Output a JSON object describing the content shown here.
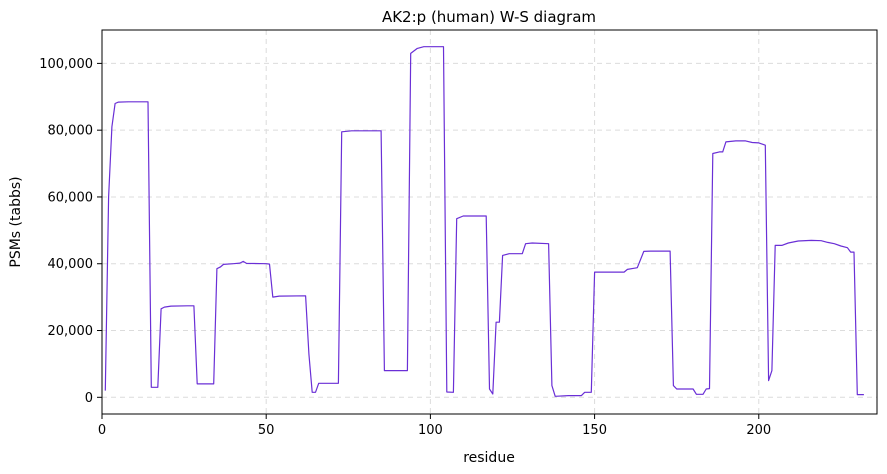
{
  "chart_data": {
    "type": "line",
    "title": "AK2:p (human) W-S diagram",
    "xlabel": "residue",
    "ylabel": "PSMs (tabbs)",
    "xlim": [
      0,
      236
    ],
    "ylim": [
      -5000,
      110000
    ],
    "x_ticks": [
      0,
      50,
      100,
      150,
      200
    ],
    "x_tick_labels": [
      "0",
      "50",
      "100",
      "150",
      "200"
    ],
    "y_ticks": [
      0,
      20000,
      40000,
      60000,
      80000,
      100000
    ],
    "y_tick_labels": [
      "0",
      "20,000",
      "40,000",
      "60,000",
      "80,000",
      "100,000"
    ],
    "grid": true,
    "series_color": "#6a2fd6",
    "series": [
      {
        "points": [
          [
            1,
            2000
          ],
          [
            2,
            60000
          ],
          [
            3,
            81000
          ],
          [
            4,
            88000
          ],
          [
            5,
            88400
          ],
          [
            8,
            88500
          ],
          [
            14,
            88500
          ],
          [
            15,
            3000
          ],
          [
            17,
            3000
          ],
          [
            18,
            26500
          ],
          [
            19,
            27000
          ],
          [
            21,
            27300
          ],
          [
            26,
            27400
          ],
          [
            28,
            27400
          ],
          [
            29,
            4000
          ],
          [
            34,
            4000
          ],
          [
            35,
            38500
          ],
          [
            36,
            39000
          ],
          [
            37,
            39800
          ],
          [
            40,
            40000
          ],
          [
            42,
            40200
          ],
          [
            43,
            40700
          ],
          [
            44,
            40100
          ],
          [
            50,
            40000
          ],
          [
            51,
            39900
          ],
          [
            52,
            30000
          ],
          [
            54,
            30300
          ],
          [
            62,
            30400
          ],
          [
            63,
            13000
          ],
          [
            64,
            1500
          ],
          [
            65,
            1500
          ],
          [
            66,
            4200
          ],
          [
            72,
            4200
          ],
          [
            73,
            79500
          ],
          [
            76,
            79800
          ],
          [
            85,
            79800
          ],
          [
            86,
            8000
          ],
          [
            93,
            8000
          ],
          [
            94,
            103000
          ],
          [
            96,
            104500
          ],
          [
            98,
            105000
          ],
          [
            104,
            105000
          ],
          [
            105,
            1600
          ],
          [
            107,
            1500
          ],
          [
            108,
            53500
          ],
          [
            110,
            54300
          ],
          [
            117,
            54300
          ],
          [
            118,
            2500
          ],
          [
            119,
            1000
          ],
          [
            120,
            22500
          ],
          [
            121,
            22500
          ],
          [
            122,
            42500
          ],
          [
            124,
            43000
          ],
          [
            128,
            43000
          ],
          [
            129,
            46000
          ],
          [
            131,
            46200
          ],
          [
            136,
            46000
          ],
          [
            137,
            3500
          ],
          [
            138,
            300
          ],
          [
            142,
            500
          ],
          [
            146,
            500
          ],
          [
            147,
            1500
          ],
          [
            149,
            1500
          ],
          [
            150,
            37500
          ],
          [
            152,
            37500
          ],
          [
            159,
            37500
          ],
          [
            160,
            38300
          ],
          [
            163,
            38800
          ],
          [
            165,
            43700
          ],
          [
            167,
            43800
          ],
          [
            173,
            43800
          ],
          [
            174,
            3500
          ],
          [
            175,
            2500
          ],
          [
            180,
            2500
          ],
          [
            181,
            900
          ],
          [
            183,
            900
          ],
          [
            184,
            2500
          ],
          [
            185,
            2600
          ],
          [
            186,
            73000
          ],
          [
            188,
            73500
          ],
          [
            189,
            73500
          ],
          [
            190,
            76500
          ],
          [
            193,
            76800
          ],
          [
            196,
            76800
          ],
          [
            198,
            76300
          ],
          [
            200,
            76200
          ],
          [
            202,
            75500
          ],
          [
            203,
            5000
          ],
          [
            204,
            8000
          ],
          [
            205,
            45500
          ],
          [
            207,
            45500
          ],
          [
            209,
            46200
          ],
          [
            212,
            46800
          ],
          [
            216,
            47000
          ],
          [
            219,
            46900
          ],
          [
            221,
            46400
          ],
          [
            223,
            46000
          ],
          [
            225,
            45300
          ],
          [
            227,
            44800
          ],
          [
            228,
            43500
          ],
          [
            229,
            43500
          ],
          [
            230,
            800
          ],
          [
            232,
            800
          ]
        ]
      }
    ]
  }
}
